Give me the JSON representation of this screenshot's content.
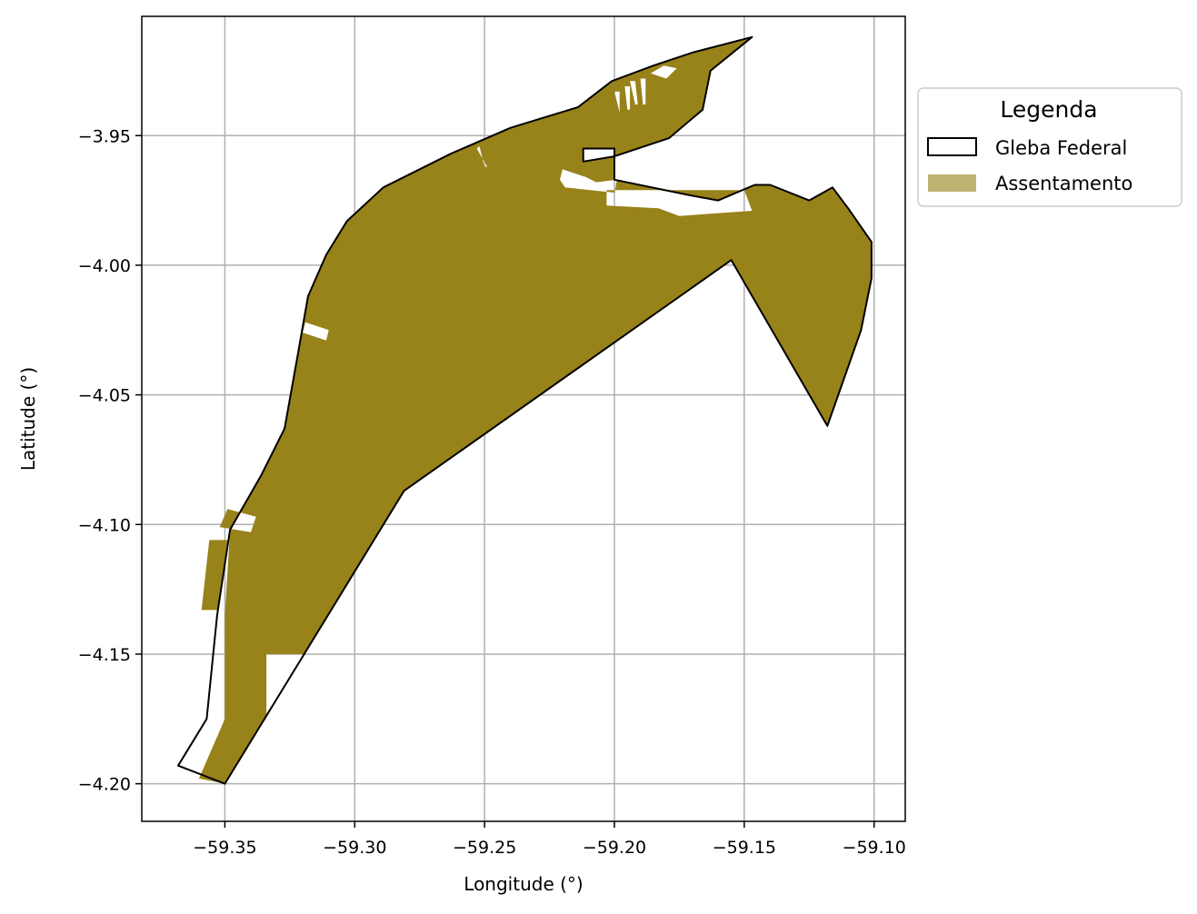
{
  "chart_data": {
    "type": "map",
    "xlabel": "Longitude (°)",
    "ylabel": "Latitude (°)",
    "xlim": [
      -59.382,
      -59.088
    ],
    "ylim": [
      -4.2145,
      -3.904
    ],
    "xticks": [
      -59.35,
      -59.3,
      -59.25,
      -59.2,
      -59.15,
      -59.1
    ],
    "xtick_labels": [
      "−59.35",
      "−59.30",
      "−59.25",
      "−59.20",
      "−59.15",
      "−59.10"
    ],
    "yticks": [
      -3.95,
      -4.0,
      -4.05,
      -4.1,
      -4.15,
      -4.2
    ],
    "ytick_labels": [
      "−3.95",
      "−4.00",
      "−4.05",
      "−4.10",
      "−4.15",
      "−4.20"
    ],
    "grid": true,
    "legend": {
      "title": "Legenda",
      "placement": "outside-right-top",
      "entries": [
        {
          "label": "Gleba Federal",
          "style": "outline",
          "color": "#000000"
        },
        {
          "label": "Assentamento",
          "style": "fill",
          "color": "#98821a"
        }
      ]
    },
    "colors": {
      "gleba_outline": "#000000",
      "assentamento_fill": "#98821a",
      "assentamento_legend": "#c0b272",
      "grid": "#b0b0b0"
    },
    "polygons": {
      "gleba_federal": [
        [
          -59.368,
          -4.193
        ],
        [
          -59.35,
          -4.2
        ],
        [
          -59.281,
          -4.087
        ],
        [
          -59.155,
          -3.998
        ],
        [
          -59.118,
          -4.062
        ],
        [
          -59.105,
          -4.025
        ],
        [
          -59.101,
          -4.005
        ],
        [
          -59.101,
          -3.991
        ],
        [
          -59.11,
          -3.978
        ],
        [
          -59.116,
          -3.97
        ],
        [
          -59.125,
          -3.975
        ],
        [
          -59.14,
          -3.969
        ],
        [
          -59.146,
          -3.969
        ],
        [
          -59.16,
          -3.975
        ],
        [
          -59.171,
          -3.973
        ],
        [
          -59.2,
          -3.967
        ],
        [
          -59.2,
          -3.955
        ],
        [
          -59.212,
          -3.955
        ],
        [
          -59.212,
          -3.96
        ],
        [
          -59.2,
          -3.958
        ],
        [
          -59.179,
          -3.951
        ],
        [
          -59.166,
          -3.94
        ],
        [
          -59.163,
          -3.925
        ],
        [
          -59.147,
          -3.912
        ],
        [
          -59.17,
          -3.918
        ],
        [
          -59.185,
          -3.923
        ],
        [
          -59.201,
          -3.929
        ],
        [
          -59.214,
          -3.939
        ],
        [
          -59.24,
          -3.947
        ],
        [
          -59.263,
          -3.957
        ],
        [
          -59.289,
          -3.97
        ],
        [
          -59.303,
          -3.983
        ],
        [
          -59.311,
          -3.996
        ],
        [
          -59.318,
          -4.012
        ],
        [
          -59.322,
          -4.035
        ],
        [
          -59.327,
          -4.063
        ],
        [
          -59.336,
          -4.081
        ],
        [
          -59.348,
          -4.102
        ],
        [
          -59.353,
          -4.135
        ],
        [
          -59.357,
          -4.175
        ]
      ],
      "assentamento": [
        [
          -59.36,
          -4.198
        ],
        [
          -59.35,
          -4.2
        ],
        [
          -59.281,
          -4.087
        ],
        [
          -59.155,
          -3.998
        ],
        [
          -59.118,
          -4.062
        ],
        [
          -59.105,
          -4.025
        ],
        [
          -59.101,
          -4.005
        ],
        [
          -59.101,
          -3.991
        ],
        [
          -59.11,
          -3.978
        ],
        [
          -59.116,
          -3.97
        ],
        [
          -59.125,
          -3.975
        ],
        [
          -59.14,
          -3.969
        ],
        [
          -59.146,
          -3.969
        ],
        [
          -59.16,
          -3.975
        ],
        [
          -59.171,
          -3.973
        ],
        [
          -59.2,
          -3.967
        ],
        [
          -59.2,
          -3.955
        ],
        [
          -59.212,
          -3.955
        ],
        [
          -59.212,
          -3.96
        ],
        [
          -59.2,
          -3.958
        ],
        [
          -59.179,
          -3.951
        ],
        [
          -59.166,
          -3.94
        ],
        [
          -59.163,
          -3.925
        ],
        [
          -59.147,
          -3.912
        ],
        [
          -59.17,
          -3.918
        ],
        [
          -59.185,
          -3.923
        ],
        [
          -59.201,
          -3.929
        ],
        [
          -59.214,
          -3.939
        ],
        [
          -59.24,
          -3.947
        ],
        [
          -59.263,
          -3.957
        ],
        [
          -59.289,
          -3.97
        ],
        [
          -59.303,
          -3.983
        ],
        [
          -59.311,
          -3.996
        ],
        [
          -59.318,
          -4.012
        ],
        [
          -59.322,
          -4.035
        ],
        [
          -59.327,
          -4.063
        ],
        [
          -59.336,
          -4.081
        ],
        [
          -59.348,
          -4.102
        ],
        [
          -59.35,
          -4.135
        ],
        [
          -59.35,
          -4.175
        ]
      ],
      "holes": [
        [
          [
            -59.334,
            -4.15
          ],
          [
            -59.319,
            -4.15
          ],
          [
            -59.334,
            -4.173
          ]
        ],
        [
          [
            -59.356,
            -4.106
          ],
          [
            -59.349,
            -4.106
          ],
          [
            -59.353,
            -4.133
          ],
          [
            -59.359,
            -4.133
          ]
        ],
        [
          [
            -59.349,
            -4.094
          ],
          [
            -59.338,
            -4.097
          ],
          [
            -59.34,
            -4.103
          ],
          [
            -59.352,
            -4.101
          ]
        ],
        [
          [
            -59.319,
            -4.022
          ],
          [
            -59.31,
            -4.025
          ],
          [
            -59.311,
            -4.029
          ],
          [
            -59.32,
            -4.026
          ]
        ],
        [
          [
            -59.252,
            -3.954
          ],
          [
            -59.25,
            -3.962
          ],
          [
            -59.249,
            -3.962
          ],
          [
            -59.253,
            -3.955
          ]
        ],
        [
          [
            -59.22,
            -3.963
          ],
          [
            -59.211,
            -3.966
          ],
          [
            -59.207,
            -3.968
          ],
          [
            -59.199,
            -3.967
          ],
          [
            -59.2,
            -3.972
          ],
          [
            -59.219,
            -3.97
          ],
          [
            -59.221,
            -3.967
          ]
        ],
        [
          [
            -59.203,
            -3.971
          ],
          [
            -59.15,
            -3.971
          ],
          [
            -59.147,
            -3.979
          ],
          [
            -59.175,
            -3.981
          ],
          [
            -59.183,
            -3.978
          ],
          [
            -59.203,
            -3.977
          ]
        ],
        [
          [
            -59.186,
            -3.926
          ],
          [
            -59.18,
            -3.928
          ],
          [
            -59.176,
            -3.924
          ],
          [
            -59.181,
            -3.923
          ]
        ],
        [
          [
            -59.19,
            -3.928
          ],
          [
            -59.189,
            -3.938
          ],
          [
            -59.188,
            -3.938
          ],
          [
            -59.188,
            -3.928
          ]
        ],
        [
          [
            -59.194,
            -3.929
          ],
          [
            -59.192,
            -3.938
          ],
          [
            -59.191,
            -3.938
          ],
          [
            -59.192,
            -3.929
          ]
        ],
        [
          [
            -59.196,
            -3.931
          ],
          [
            -59.195,
            -3.94
          ],
          [
            -59.194,
            -3.94
          ],
          [
            -59.194,
            -3.931
          ]
        ],
        [
          [
            -59.2,
            -3.933
          ],
          [
            -59.198,
            -3.941
          ],
          [
            -59.198,
            -3.933
          ]
        ]
      ]
    }
  }
}
